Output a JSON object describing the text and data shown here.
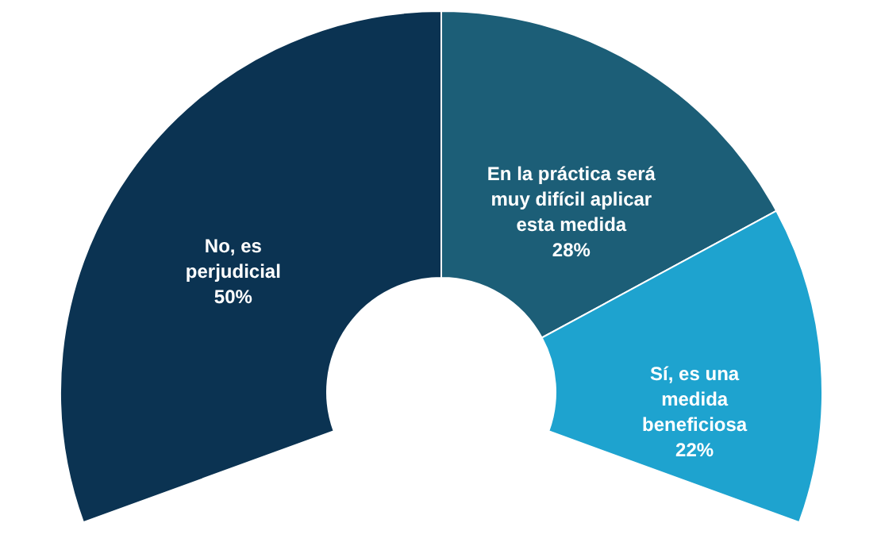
{
  "chart_data": {
    "type": "donut",
    "categories": [
      "No, es perjudicial",
      "En la práctica será muy difícil aplicar esta medida",
      "Sí, es una medida beneficiosa"
    ],
    "values": [
      50,
      28,
      22
    ],
    "value_labels": [
      "50%",
      "28%",
      "22%"
    ],
    "colors": [
      "#0b3352",
      "#1c5e77",
      "#1ea3cf"
    ]
  }
}
